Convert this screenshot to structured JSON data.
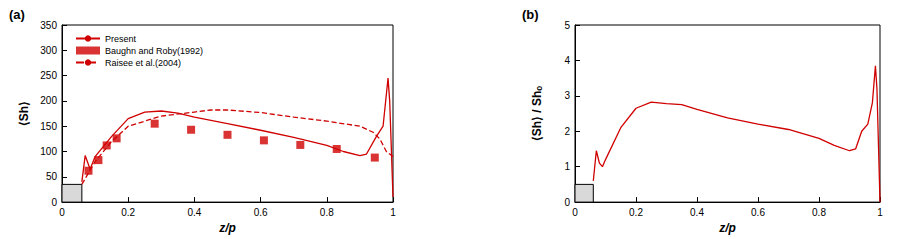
{
  "chart_data": [
    {
      "type": "line",
      "panel": "(a)",
      "x_label": "z/p",
      "y_label": "⟨Sh⟩",
      "xlim": [
        0,
        1
      ],
      "xticks": [
        0,
        0.2,
        0.4,
        0.6,
        0.8,
        1
      ],
      "ylim": [
        0,
        350
      ],
      "yticks": [
        0,
        50,
        100,
        150,
        200,
        250,
        300,
        350
      ],
      "legend": "upper left",
      "rib": {
        "xlim": [
          0,
          0.06
        ],
        "ylim": [
          0,
          35
        ]
      },
      "series": [
        {
          "name": "Present",
          "type": "line",
          "color": "#d00000",
          "line_style": "solid",
          "x": [
            0.06,
            0.07,
            0.085,
            0.1,
            0.15,
            0.2,
            0.25,
            0.3,
            0.35,
            0.4,
            0.5,
            0.6,
            0.7,
            0.8,
            0.85,
            0.9,
            0.92,
            0.95,
            0.97,
            0.985,
            0.99,
            1.0
          ],
          "values": [
            40,
            92,
            65,
            90,
            130,
            165,
            178,
            180,
            176,
            168,
            155,
            142,
            128,
            112,
            100,
            92,
            95,
            130,
            150,
            245,
            200,
            10
          ]
        },
        {
          "name": "Baughn and Roby(1992)",
          "type": "scatter",
          "color": "#d00000",
          "marker": "square",
          "x": [
            0.08,
            0.11,
            0.135,
            0.165,
            0.28,
            0.39,
            0.5,
            0.61,
            0.72,
            0.83,
            0.945
          ],
          "values": [
            62,
            83,
            112,
            126,
            155,
            143,
            133,
            122,
            113,
            105,
            88
          ]
        },
        {
          "name": "Raisee et al.(2004)",
          "type": "line",
          "color": "#d00000",
          "line_style": "dashed",
          "x": [
            0.06,
            0.1,
            0.15,
            0.2,
            0.3,
            0.4,
            0.45,
            0.5,
            0.6,
            0.7,
            0.8,
            0.9,
            0.94,
            0.96,
            0.98,
            0.99,
            1.0
          ],
          "values": [
            35,
            80,
            120,
            150,
            170,
            178,
            182,
            182,
            177,
            168,
            160,
            150,
            138,
            125,
            100,
            95,
            90
          ]
        }
      ]
    },
    {
      "type": "line",
      "panel": "(b)",
      "x_label": "z/p",
      "y_label": "⟨Sh⟩ / Shₒ",
      "xlim": [
        0,
        1
      ],
      "xticks": [
        0,
        0.2,
        0.4,
        0.6,
        0.8,
        1
      ],
      "ylim": [
        0,
        5
      ],
      "yticks": [
        0,
        1,
        2,
        3,
        4,
        5
      ],
      "rib": {
        "xlim": [
          0,
          0.06
        ],
        "ylim": [
          0,
          0.5
        ]
      },
      "series": [
        {
          "type": "line",
          "color": "#d00000",
          "line_style": "solid",
          "x": [
            0.06,
            0.07,
            0.08,
            0.09,
            0.1,
            0.15,
            0.2,
            0.25,
            0.3,
            0.35,
            0.4,
            0.5,
            0.6,
            0.7,
            0.8,
            0.85,
            0.9,
            0.92,
            0.94,
            0.96,
            0.975,
            0.985,
            0.99,
            1.0
          ],
          "values": [
            0.6,
            1.45,
            1.1,
            1.0,
            1.2,
            2.1,
            2.65,
            2.82,
            2.78,
            2.75,
            2.62,
            2.38,
            2.2,
            2.05,
            1.8,
            1.6,
            1.45,
            1.5,
            2.0,
            2.2,
            2.8,
            3.85,
            3.2,
            0
          ]
        }
      ]
    }
  ]
}
